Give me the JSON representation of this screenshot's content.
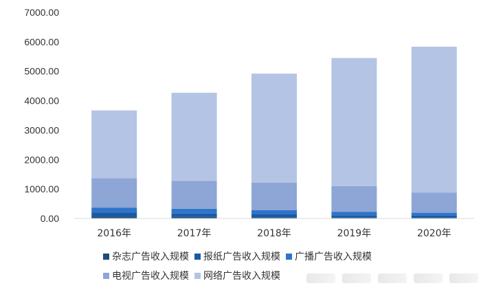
{
  "chart_data": {
    "type": "bar",
    "stacked": true,
    "categories": [
      "2016年",
      "2017年",
      "2018年",
      "2019年",
      "2020年"
    ],
    "ylim": [
      0,
      7000
    ],
    "yticks": [
      "0.00",
      "1000.00",
      "2000.00",
      "3000.00",
      "4000.00",
      "5000.00",
      "6000.00",
      "7000.00"
    ],
    "grid": false,
    "legend_position": "bottom",
    "series": [
      {
        "name": "杂志广告收入规模",
        "color": "#1f4e79",
        "values": [
          60,
          50,
          40,
          30,
          25
        ]
      },
      {
        "name": "报纸广告收入规模",
        "color": "#1a5aa6",
        "values": [
          140,
          120,
          100,
          80,
          70
        ]
      },
      {
        "name": "广播广告收入规模",
        "color": "#2e75c9",
        "values": [
          170,
          160,
          140,
          120,
          100
        ]
      },
      {
        "name": "电视广告收入规模",
        "color": "#8ea6d6",
        "values": [
          1000,
          950,
          940,
          870,
          680
        ]
      },
      {
        "name": "网络广告收入规模",
        "color": "#b4c4e4",
        "values": [
          2300,
          2990,
          3700,
          4350,
          4960
        ]
      }
    ]
  }
}
